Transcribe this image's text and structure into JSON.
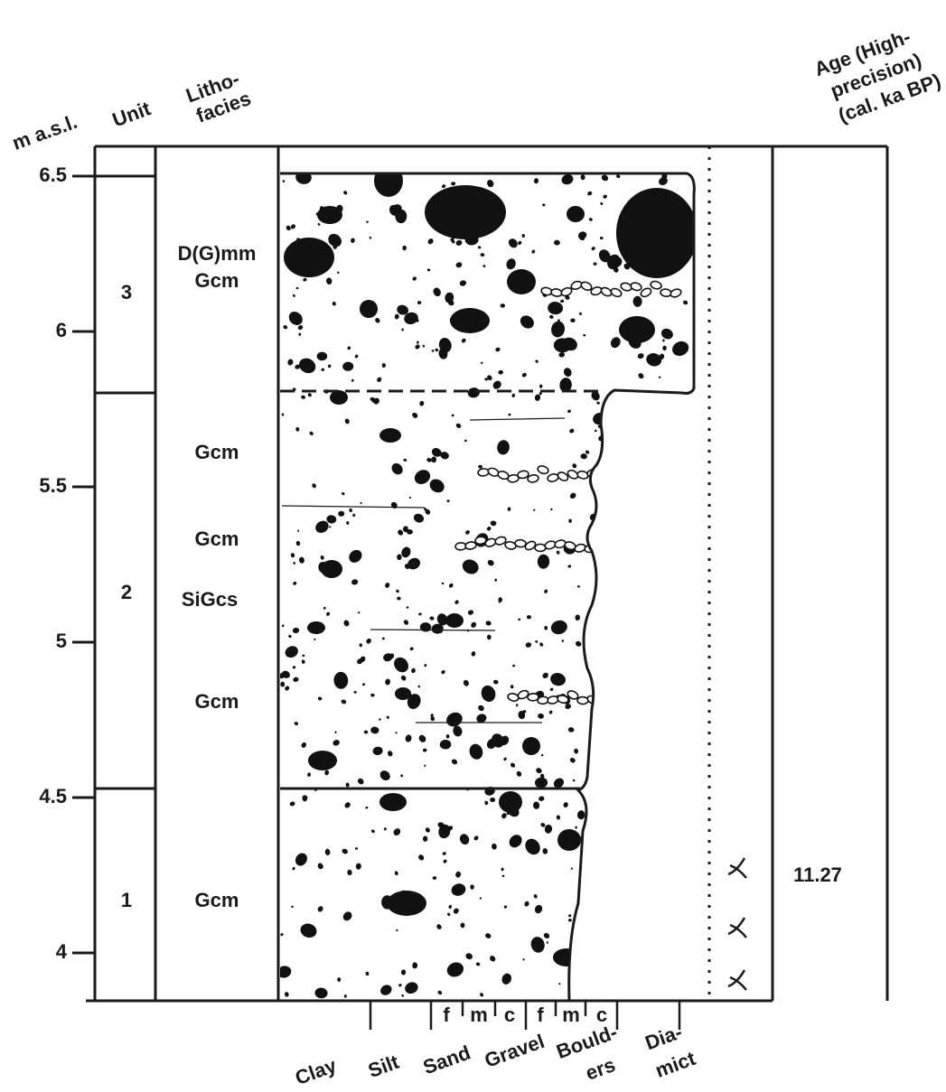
{
  "header": {
    "depth_label": "m a.s.l.",
    "unit_label": "Unit",
    "lithofacies_label": [
      "Litho-",
      "facies"
    ],
    "age_label": [
      "Age (High-",
      "precision)",
      "(cal. ka BP)"
    ]
  },
  "depth_ticks": [
    6.5,
    6,
    5.5,
    5,
    4.5,
    4
  ],
  "units": [
    {
      "label": "3",
      "lithofacies": [
        "D(G)mm",
        "Gcm"
      ]
    },
    {
      "label": "2",
      "lithofacies": [
        "Gcm",
        "Gcm",
        "SiGcs",
        "Gcm"
      ]
    },
    {
      "label": "1",
      "lithofacies": [
        "Gcm"
      ],
      "age": 11.27
    }
  ],
  "grain_size": {
    "subclasses": [
      "f",
      "m",
      "c",
      "f",
      "m",
      "c"
    ],
    "classes": [
      [
        "Clay"
      ],
      [
        "Silt"
      ],
      [
        "Sand"
      ],
      [
        "Gravel"
      ],
      [
        "Bould-",
        "ers"
      ],
      [
        "Dia-",
        "mict"
      ]
    ]
  }
}
